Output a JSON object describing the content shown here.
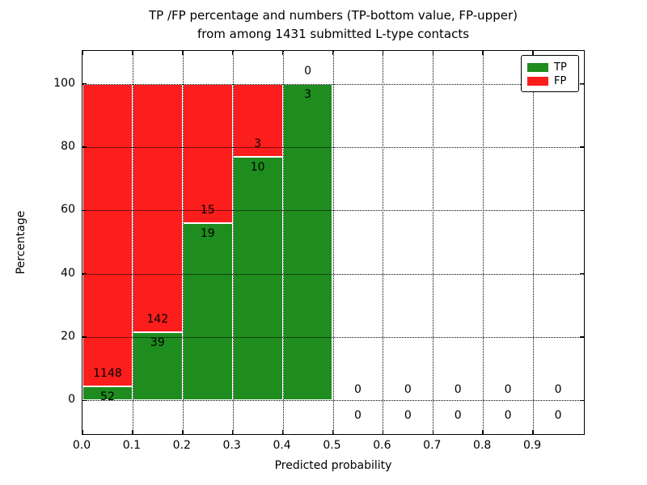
{
  "title": {
    "line1": "TP /FP percentage and numbers (TP-bottom value, FP-upper)",
    "line2": "from among 1431 submitted L-type contacts"
  },
  "axes": {
    "xlabel": "Predicted probability",
    "ylabel": "Percentage",
    "x_tick_labels": [
      "0.0",
      "0.1",
      "0.2",
      "0.3",
      "0.4",
      "0.5",
      "0.6",
      "0.7",
      "0.8",
      "0.9"
    ],
    "y_tick_labels": [
      "0",
      "20",
      "40",
      "60",
      "80",
      "100"
    ]
  },
  "legend": {
    "items": [
      {
        "label": "TP",
        "color": "#1E8C1E"
      },
      {
        "label": "FP",
        "color": "#FC1D1D"
      }
    ],
    "position": "upper right"
  },
  "chart_data": {
    "type": "bar",
    "stacked": true,
    "title": "TP /FP percentage and numbers (TP-bottom value, FP-upper) from among 1431 submitted L-type contacts",
    "xlabel": "Predicted probability",
    "ylabel": "Percentage",
    "total_contacts": 1431,
    "bin_width": 0.1,
    "bin_starts": [
      0.0,
      0.1,
      0.2,
      0.3,
      0.4,
      0.5,
      0.6,
      0.7,
      0.8,
      0.9
    ],
    "categories": [
      "0.0-0.1",
      "0.1-0.2",
      "0.2-0.3",
      "0.3-0.4",
      "0.4-0.5",
      "0.5-0.6",
      "0.6-0.7",
      "0.7-0.8",
      "0.8-0.9",
      "0.9-1.0"
    ],
    "series": [
      {
        "name": "TP",
        "color": "#1E8C1E",
        "counts": [
          52,
          39,
          19,
          10,
          3,
          0,
          0,
          0,
          0,
          0
        ],
        "percent": [
          4.33,
          21.55,
          55.88,
          76.92,
          100.0,
          0,
          0,
          0,
          0,
          0
        ]
      },
      {
        "name": "FP",
        "color": "#FC1D1D",
        "counts": [
          1148,
          142,
          15,
          3,
          0,
          0,
          0,
          0,
          0,
          0
        ],
        "percent": [
          95.67,
          78.45,
          44.12,
          23.08,
          0.0,
          0,
          0,
          0,
          0,
          0
        ]
      }
    ],
    "xlim": [
      0.0,
      1.0
    ],
    "ylim": [
      -10.4,
      110.4
    ],
    "x_ticks": [
      0.0,
      0.1,
      0.2,
      0.3,
      0.4,
      0.5,
      0.6,
      0.7,
      0.8,
      0.9
    ],
    "y_ticks": [
      0,
      20,
      40,
      60,
      80,
      100
    ],
    "grid": true,
    "grid_style": "dotted",
    "bar_edge_color": "#ffffff",
    "label_color": "#000000"
  }
}
